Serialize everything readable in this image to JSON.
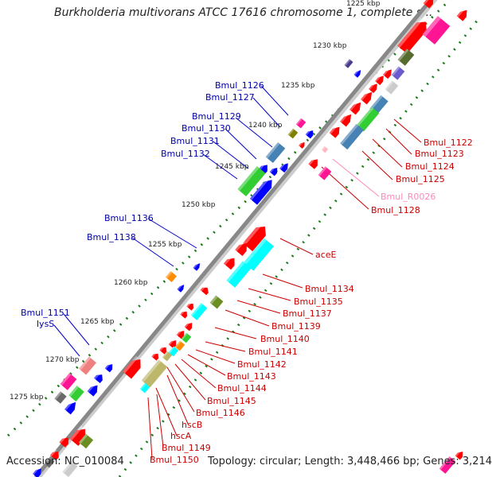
{
  "title": "Burkholderia multivorans ATCC 17616 chromosome 1, complete s...",
  "accession": "Accession: NC_010084",
  "topology": "Topology: circular; Length: 3,448,466 bp; Genes: 3,214",
  "colors": {
    "forward_gene": "#ff0000",
    "reverse_gene": "#0000ff",
    "backbone": "#888888",
    "left_label": "#0000aa",
    "right_label": "#cc0000",
    "rna_label": "#ff88bb",
    "tick_dots": "#1a7a1a"
  },
  "kbp_ticks": [
    "1225 kbp",
    "1230 kbp",
    "1235 kbp",
    "1240 kbp",
    "1245 kbp",
    "1250 kbp",
    "1255 kbp",
    "1260 kbp",
    "1265 kbp",
    "1270 kbp",
    "1275 kbp"
  ],
  "left_labels": [
    "Bmul_1126",
    "Bmul_1127",
    "Bmul_1129",
    "Bmul_1130",
    "Bmul_1131",
    "Bmul_1132",
    "Bmul_1136",
    "Bmul_1138",
    "Bmul_1151",
    "lysS"
  ],
  "right_labels": [
    "Bmul_1122",
    "Bmul_1123",
    "Bmul_1124",
    "Bmul_1125",
    "Bmul_R0026",
    "Bmul_1128",
    "aceE",
    "Bmul_1134",
    "Bmul_1135",
    "Bmul_1137",
    "Bmul_1139",
    "Bmul_1140",
    "Bmul_1141",
    "Bmul_1142",
    "Bmul_1143",
    "Bmul_1144",
    "Bmul_1145",
    "Bmul_1146"
  ],
  "bottom_labels": [
    "hscB",
    "hscA",
    "Bmul_1149",
    "Bmul_1150"
  ]
}
